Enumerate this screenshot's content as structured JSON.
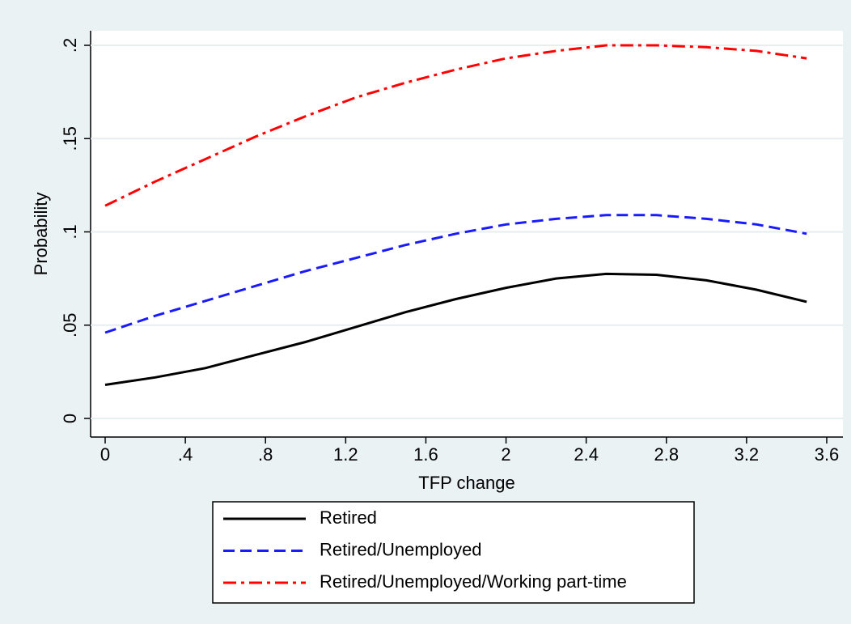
{
  "chart_data": {
    "type": "line",
    "x": [
      0,
      0.25,
      0.5,
      0.75,
      1,
      1.25,
      1.5,
      1.75,
      2,
      2.25,
      2.5,
      2.75,
      3,
      3.25,
      3.5
    ],
    "series": [
      {
        "name": "Retired",
        "color": "#000000",
        "dash": "solid",
        "values": [
          0.018,
          0.022,
          0.027,
          0.034,
          0.041,
          0.049,
          0.057,
          0.064,
          0.07,
          0.075,
          0.0775,
          0.077,
          0.074,
          0.069,
          0.0625
        ]
      },
      {
        "name": "Retired/Unemployed",
        "color": "#1a1aff",
        "dash": "dash",
        "values": [
          0.046,
          0.055,
          0.063,
          0.071,
          0.079,
          0.086,
          0.093,
          0.099,
          0.104,
          0.107,
          0.109,
          0.109,
          0.107,
          0.104,
          0.099
        ]
      },
      {
        "name": "Retired/Unemployed/Working part-time",
        "color": "#ff0000",
        "dash": "dashdot",
        "values": [
          0.114,
          0.127,
          0.139,
          0.151,
          0.162,
          0.172,
          0.18,
          0.187,
          0.193,
          0.197,
          0.2,
          0.2,
          0.199,
          0.197,
          0.193
        ]
      }
    ],
    "xlabel": "TFP change",
    "ylabel": "Probability",
    "xlim": [
      0,
      3.6
    ],
    "xticks": [
      0,
      {
        "value": 0.4,
        "label": ".4"
      },
      {
        "value": 0.8,
        "label": ".8"
      },
      1.2,
      1.6,
      2,
      2.4,
      2.8,
      3.2,
      3.6
    ],
    "ylim": [
      0,
      0.2
    ],
    "yticks": [
      0,
      {
        "value": 0.05,
        "label": ".05"
      },
      {
        "value": 0.1,
        "label": ".1"
      },
      {
        "value": 0.15,
        "label": ".15"
      },
      {
        "value": 0.2,
        "label": ".2"
      }
    ],
    "grid": true,
    "legend": "bottom"
  }
}
